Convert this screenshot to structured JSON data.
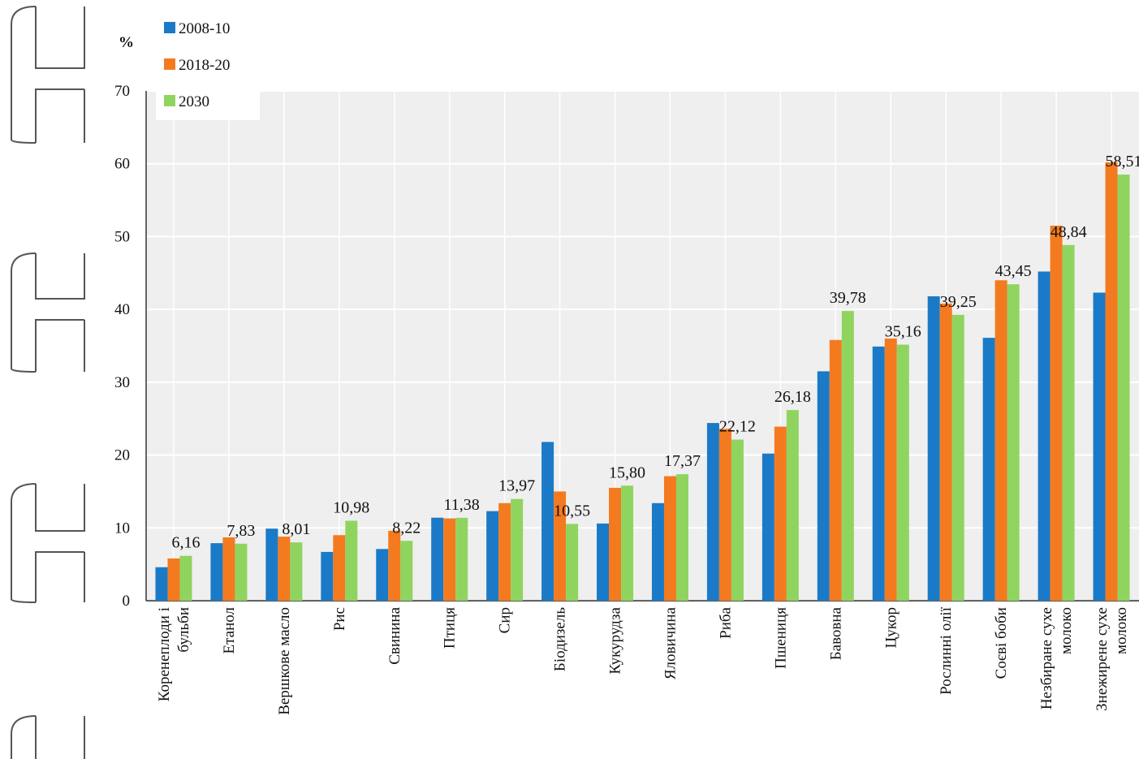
{
  "chart_data": {
    "type": "bar",
    "ylabel": "%",
    "ylim": [
      0,
      70
    ],
    "yticks": [
      0,
      10,
      20,
      30,
      40,
      50,
      60,
      70
    ],
    "grid": true,
    "legend_position": "top-left",
    "categories": [
      [
        "Коренеплоди і",
        "бульби"
      ],
      [
        "Етанол"
      ],
      [
        "Вершкове масло"
      ],
      [
        "Рис"
      ],
      [
        "Свинина"
      ],
      [
        "Птиця"
      ],
      [
        "Сир"
      ],
      [
        "Біодизель"
      ],
      [
        "Кукурудза"
      ],
      [
        "Яловичина"
      ],
      [
        "Риба"
      ],
      [
        "Пшениця"
      ],
      [
        "Бавовна"
      ],
      [
        "Цукор"
      ],
      [
        "Рослинні олії"
      ],
      [
        "Соєві боби"
      ],
      [
        "Незбиране сухе",
        "молоко"
      ],
      [
        "Знежирене сухе",
        "молоко"
      ]
    ],
    "series": [
      {
        "name": "2008-10",
        "color": "#1a7ac7",
        "values": [
          4.6,
          7.9,
          9.9,
          6.7,
          7.1,
          11.4,
          12.3,
          21.8,
          10.6,
          13.4,
          24.4,
          20.2,
          31.5,
          34.9,
          41.8,
          36.1,
          45.2,
          42.3
        ]
      },
      {
        "name": "2018-20",
        "color": "#f47a20",
        "values": [
          5.8,
          8.7,
          8.8,
          9.0,
          9.6,
          11.3,
          13.4,
          15.0,
          15.5,
          17.1,
          23.6,
          23.9,
          35.8,
          36.0,
          40.8,
          44.0,
          51.5,
          60.2
        ]
      },
      {
        "name": "2030",
        "color": "#8fd45f",
        "values": [
          6.16,
          7.83,
          8.01,
          10.98,
          8.22,
          11.38,
          13.97,
          10.55,
          15.8,
          17.37,
          22.12,
          26.18,
          39.78,
          35.16,
          39.25,
          43.45,
          48.84,
          58.51
        ]
      }
    ],
    "data_labels": [
      "6,16",
      "7,83",
      "8,01",
      "10,98",
      "8,22",
      "11,38",
      "13,97",
      "10,55",
      "15,80",
      "17,37",
      "22,12",
      "26,18",
      "39,78",
      "35,16",
      "39,25",
      "43,45",
      "48,84",
      "58,51"
    ]
  }
}
